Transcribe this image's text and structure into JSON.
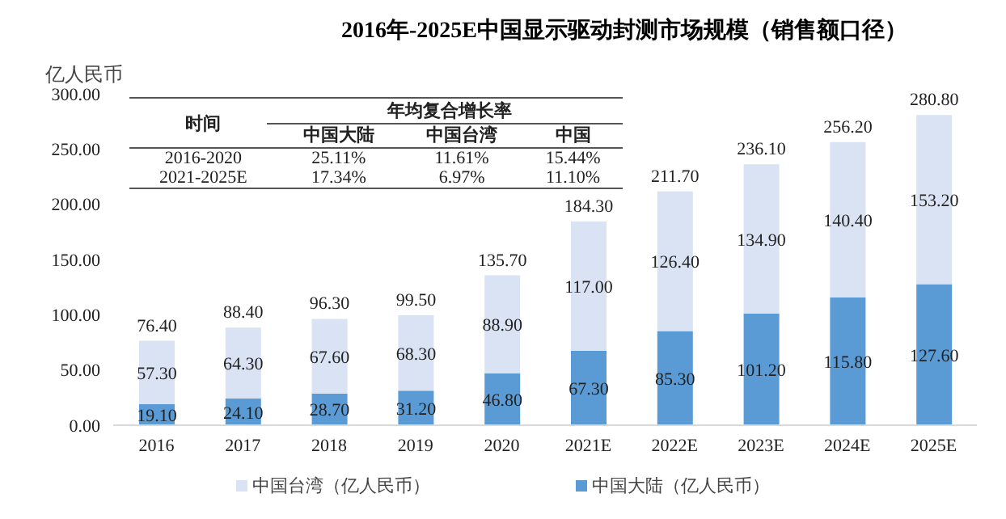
{
  "chart_data": {
    "type": "bar",
    "title": "2016年-2025E中国显示驱动封测市场规模（销售额口径）",
    "ylabel": "亿人民币",
    "categories": [
      "2016",
      "2017",
      "2018",
      "2019",
      "2020",
      "2021E",
      "2022E",
      "2023E",
      "2024E",
      "2025E"
    ],
    "stacked": true,
    "series": [
      {
        "name": "中国大陆（亿人民币）",
        "color": "#5b9bd5",
        "values": [
          19.1,
          24.1,
          28.7,
          31.2,
          46.8,
          67.3,
          85.3,
          101.2,
          115.8,
          127.6
        ],
        "value_labels": [
          "19.10",
          "24.10",
          "28.70",
          "31.20",
          "46.80",
          "67.30",
          "85.30",
          "101.20",
          "115.80",
          "127.60"
        ]
      },
      {
        "name": "中国台湾（亿人民币）",
        "color": "#dae3f3",
        "values": [
          57.3,
          64.3,
          67.6,
          68.3,
          88.9,
          117.0,
          126.4,
          134.9,
          140.4,
          153.2
        ],
        "value_labels": [
          "57.30",
          "64.30",
          "67.60",
          "68.30",
          "88.90",
          "117.00",
          "126.40",
          "134.90",
          "140.40",
          "153.20"
        ]
      }
    ],
    "totals": [
      "76.40",
      "88.40",
      "96.30",
      "99.50",
      "135.70",
      "184.30",
      "211.70",
      "236.10",
      "256.20",
      "280.80"
    ],
    "ylim": [
      0,
      300
    ],
    "yticks": [
      {
        "value": 0,
        "label": "0.00"
      },
      {
        "value": 50,
        "label": "50.00"
      },
      {
        "value": 100,
        "label": "100.00"
      },
      {
        "value": 150,
        "label": "150.00"
      },
      {
        "value": 200,
        "label": "200.00"
      },
      {
        "value": 250,
        "label": "250.00"
      },
      {
        "value": 300,
        "label": "300.00"
      }
    ],
    "legend": "bottom",
    "annotations": [
      "时间",
      "年均复合增长率",
      "中国大陆",
      "中国台湾",
      "中国",
      "2016-2020",
      "25.11%",
      "11.61%",
      "15.44%",
      "2021-2025E",
      "17.34%",
      "6.97%",
      "11.10%"
    ]
  }
}
